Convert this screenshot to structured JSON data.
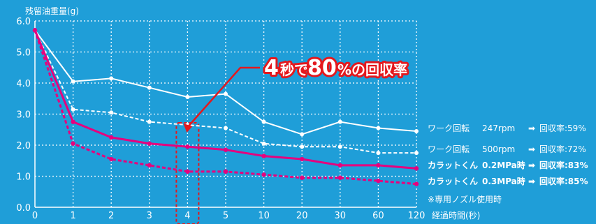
{
  "chart_data": {
    "type": "line",
    "ylabel": "残留油重量(g)",
    "xlabel": "経過時間(秒)",
    "categories": [
      "0",
      "1",
      "2",
      "3",
      "4",
      "5",
      "10",
      "20",
      "30",
      "60",
      "120"
    ],
    "ylim": [
      0,
      6
    ],
    "yticks": [
      "0.0",
      "1.0",
      "2.0",
      "3.0",
      "4.0",
      "5.0",
      "6.0"
    ],
    "grid": true,
    "series": [
      {
        "name": "ワーク回転 247rpm",
        "color": "#ffffff",
        "style": "solid",
        "values": [
          5.7,
          4.05,
          4.15,
          3.85,
          3.55,
          3.65,
          2.75,
          2.35,
          2.75,
          2.55,
          2.45
        ]
      },
      {
        "name": "ワーク回転 500rpm",
        "color": "#ffffff",
        "style": "dashed",
        "values": [
          5.7,
          3.15,
          3.05,
          2.75,
          2.65,
          2.55,
          2.05,
          1.95,
          1.95,
          1.75,
          1.75
        ]
      },
      {
        "name": "カラットくん 0.2MPa時",
        "color": "#e6007e",
        "style": "solid",
        "values": [
          5.7,
          2.75,
          2.25,
          2.05,
          1.95,
          1.85,
          1.65,
          1.55,
          1.35,
          1.35,
          1.25
        ]
      },
      {
        "name": "カラットくん 0.3MPa時",
        "color": "#e6007e",
        "style": "dashed",
        "values": [
          5.7,
          2.05,
          1.55,
          1.35,
          1.15,
          1.15,
          1.05,
          0.95,
          0.95,
          0.85,
          0.75
        ]
      }
    ],
    "annotation": {
      "text_num1": "4",
      "text_mid": "秒で",
      "text_num2": "80",
      "text_tail": "%の回収率"
    },
    "highlight_category": "4"
  },
  "legend": [
    {
      "name": "ワーク回転",
      "cond": "247rpm",
      "result": "回収率:59%",
      "bold": false
    },
    {
      "name": "ワーク回転",
      "cond": "500rpm",
      "result": "回収率:72%",
      "bold": false
    },
    {
      "name": "カラットくん",
      "cond": "0.2MPa時",
      "result": "回収率:83%",
      "bold": true
    },
    {
      "name": "カラットくん",
      "cond": "0.3MPa時",
      "result": "回収率:85%",
      "bold": true
    }
  ],
  "note": "※専用ノズル使用時",
  "arrow_icon": "right-arrow-icon"
}
